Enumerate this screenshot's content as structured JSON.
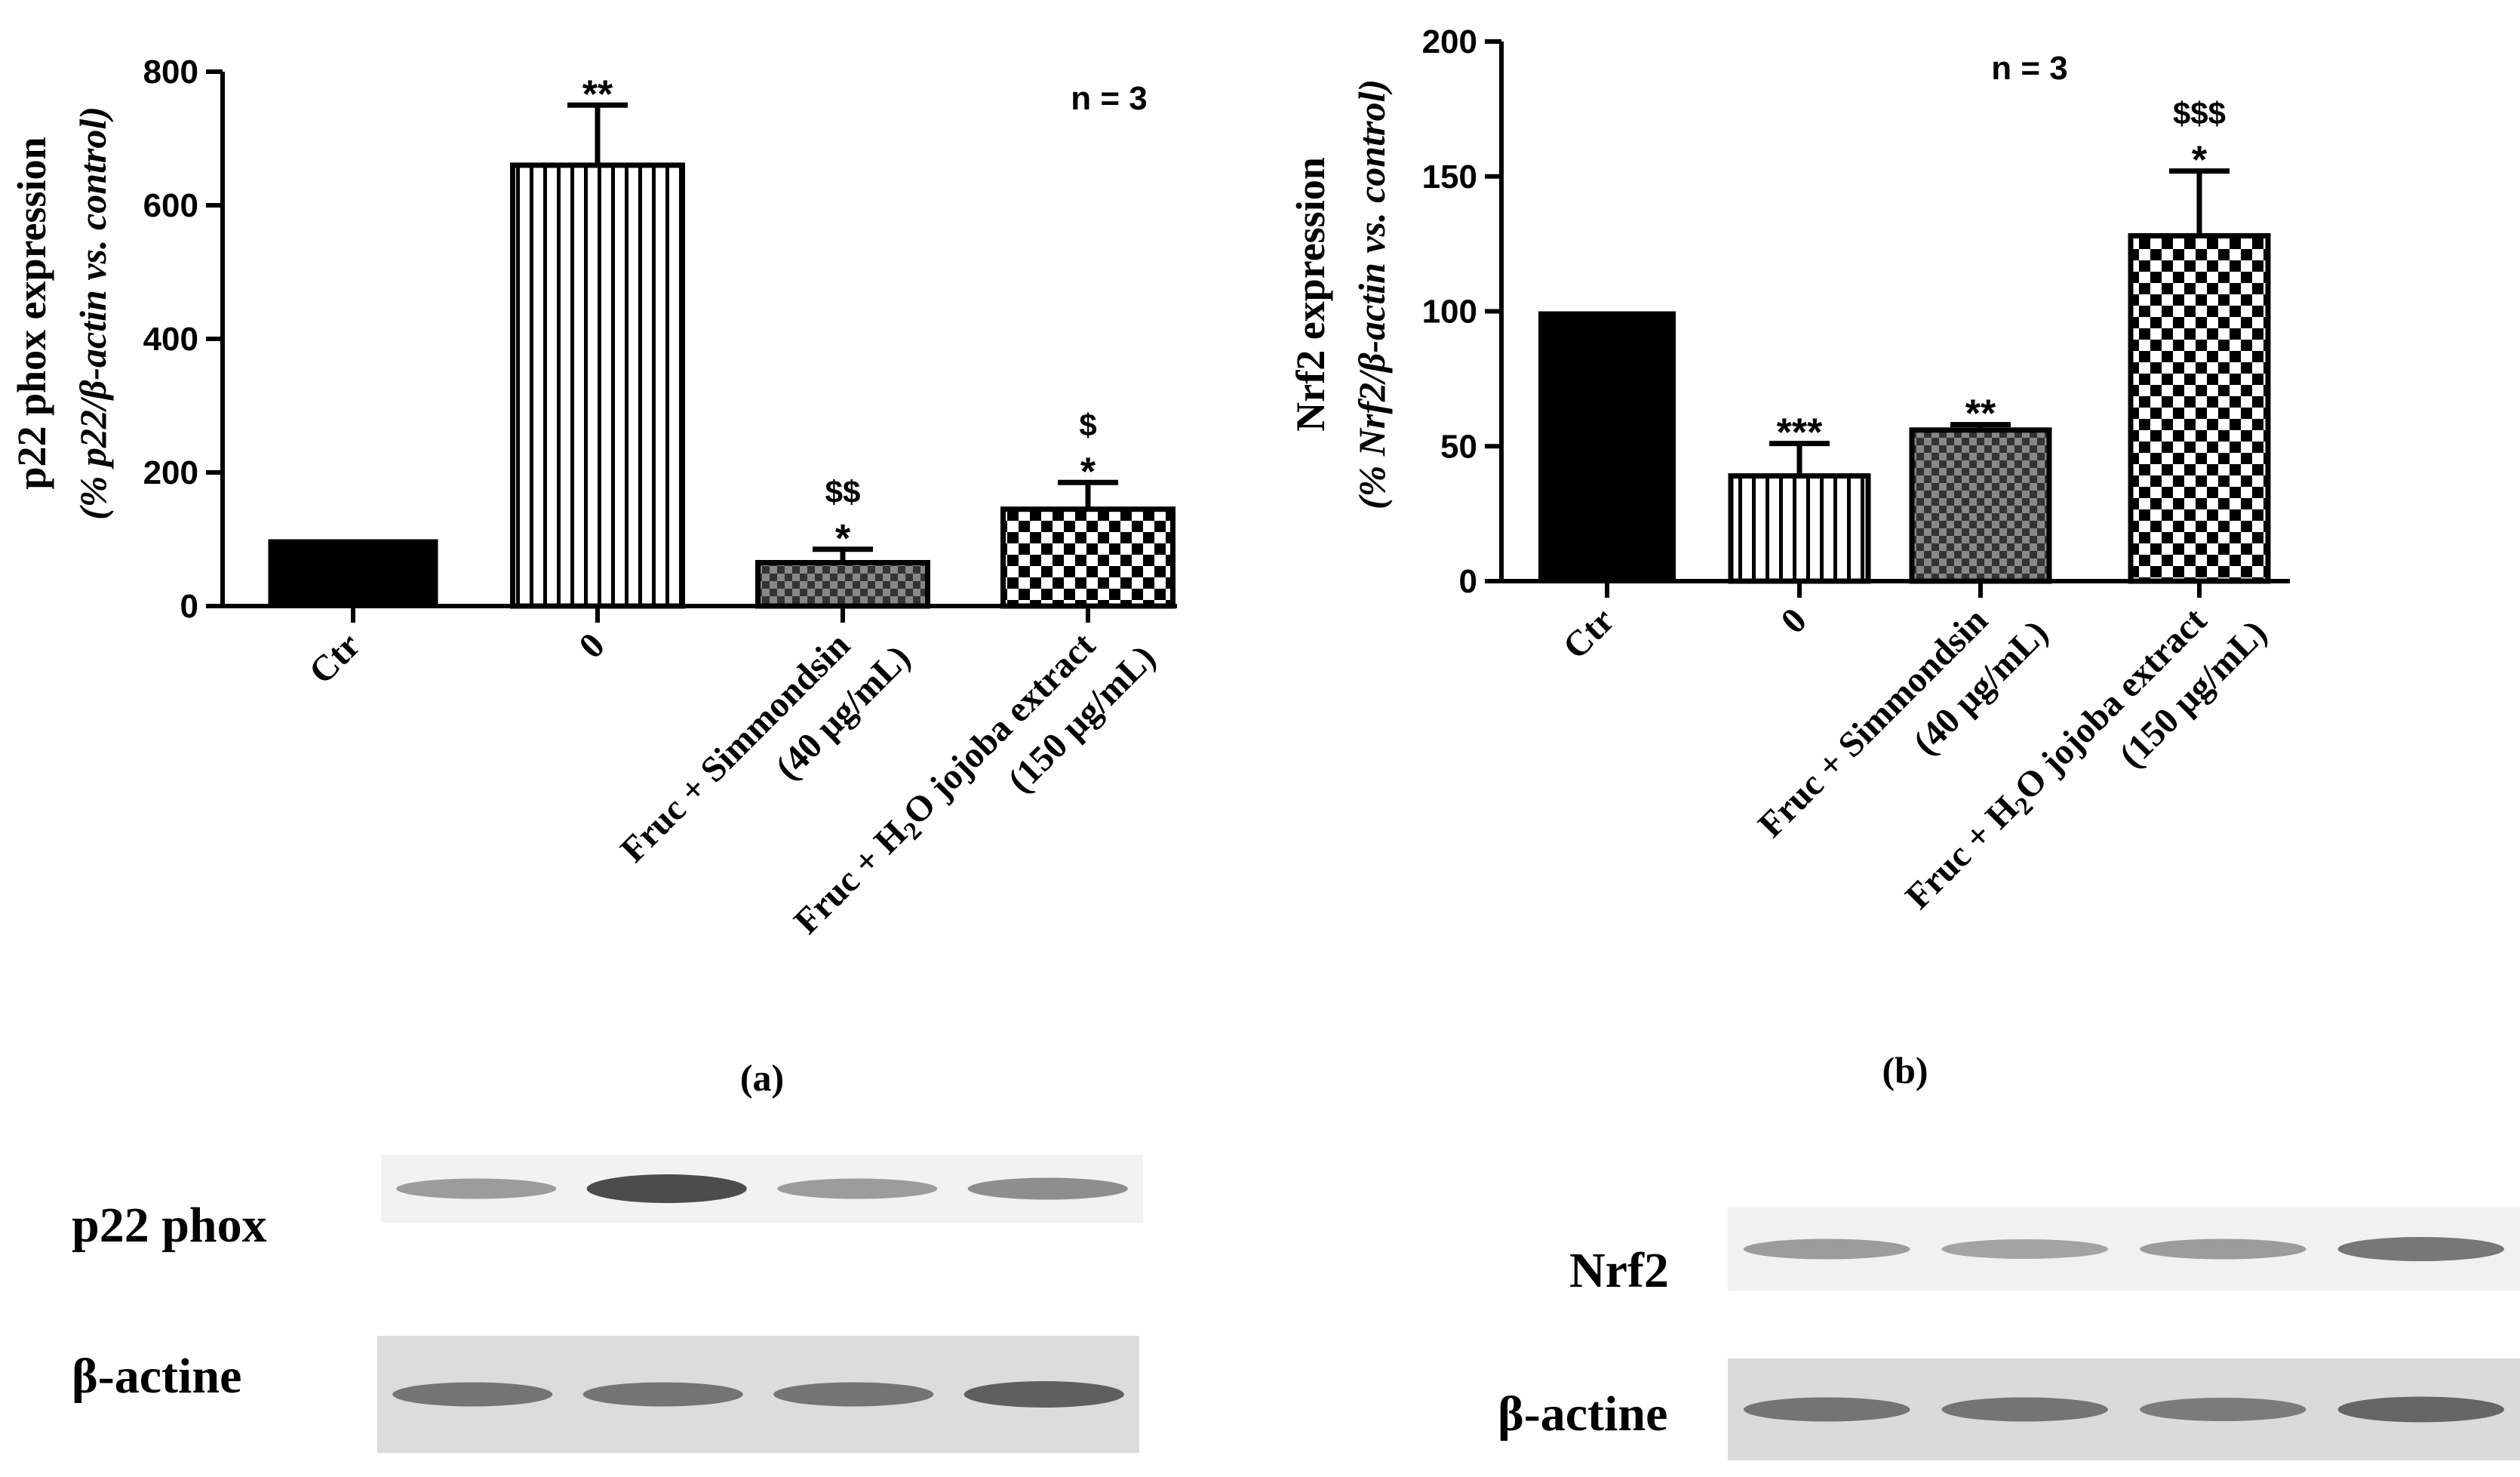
{
  "chart_data": [
    {
      "type": "bar",
      "panel_label": "(a)",
      "ylabel": "p22 phox expression",
      "ylabel_sub": "(% p22/β-actin vs. control)",
      "ylim": [
        0,
        800
      ],
      "yticks": [
        0,
        200,
        400,
        600,
        800
      ],
      "n_label": "n = 3",
      "categories": [
        "Ctr",
        "0",
        "Fruc + Simmondsin",
        "Fruc + H2O jojoba extract"
      ],
      "categories_line2": [
        "",
        "",
        "(40 μg/mL)",
        "(150 μg/mL)"
      ],
      "values": [
        100,
        660,
        65,
        145
      ],
      "errors": [
        0,
        90,
        20,
        40
      ],
      "patterns": [
        "solid",
        "vlines",
        "check-small",
        "check-large"
      ],
      "significance": [
        "",
        "**",
        "*",
        "*"
      ],
      "significance_dollar": [
        "",
        "",
        "$$",
        "$"
      ]
    },
    {
      "type": "bar",
      "panel_label": "(b)",
      "ylabel": "Nrf2 expression",
      "ylabel_sub": "(% Nrf2/β-actin vs. control)",
      "ylim": [
        0,
        200
      ],
      "yticks": [
        0,
        50,
        100,
        150,
        200
      ],
      "n_label": "n = 3",
      "categories": [
        "Ctr",
        "0",
        "Fruc + Simmondsin",
        "Fruc + H2O jojoba extract"
      ],
      "categories_line2": [
        "",
        "",
        "(40 μg/mL)",
        "(150 μg/mL)"
      ],
      "values": [
        100,
        39,
        56,
        128
      ],
      "errors": [
        0,
        12,
        2,
        24
      ],
      "patterns": [
        "solid",
        "vlines",
        "check-small",
        "check-large"
      ],
      "significance": [
        "",
        "***",
        "**",
        "*"
      ],
      "significance_dollar": [
        "",
        "",
        "",
        "$$$"
      ]
    }
  ],
  "blots": {
    "left": {
      "target_label": "p22 phox",
      "control_label": "β-actine",
      "target_intensity": [
        0.35,
        0.9,
        0.35,
        0.45
      ],
      "control_intensity": [
        0.6,
        0.6,
        0.6,
        0.75
      ]
    },
    "right": {
      "target_label": "Nrf2",
      "control_label": "β-actine",
      "target_intensity": [
        0.35,
        0.3,
        0.35,
        0.6
      ],
      "control_intensity": [
        0.6,
        0.6,
        0.55,
        0.7
      ]
    }
  }
}
